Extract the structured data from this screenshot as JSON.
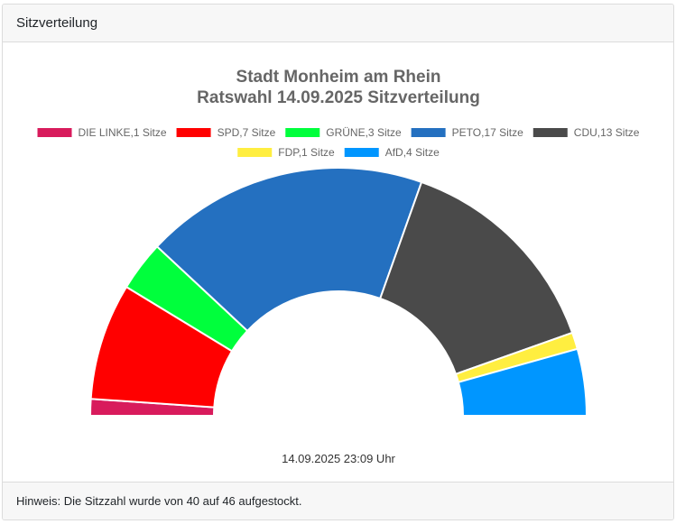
{
  "header": {
    "title": "Sitzverteilung"
  },
  "footer": {
    "note": "Hinweis: Die Sitzzahl wurde von 40 auf 46 aufgestockt."
  },
  "chart_data": {
    "type": "pie",
    "variant": "semi-doughnut",
    "title": [
      "Stadt Monheim am Rhein",
      "Ratswahl 14.09.2025 Sitzverteilung"
    ],
    "legend_position": "top",
    "unit": "Sitze",
    "total": 46,
    "series": [
      {
        "name": "DIE LINKE",
        "value": 1,
        "color": "#d81b5c"
      },
      {
        "name": "SPD",
        "value": 7,
        "color": "#ff0000"
      },
      {
        "name": "GRÜNE",
        "value": 3,
        "color": "#00ff3c"
      },
      {
        "name": "PETO",
        "value": 17,
        "color": "#2470c0"
      },
      {
        "name": "CDU",
        "value": 13,
        "color": "#4a4a4a"
      },
      {
        "name": "FDP",
        "value": 1,
        "color": "#ffee40"
      },
      {
        "name": "AfD",
        "value": 4,
        "color": "#0096ff"
      }
    ],
    "timestamp": "14.09.2025 23:09 Uhr"
  }
}
